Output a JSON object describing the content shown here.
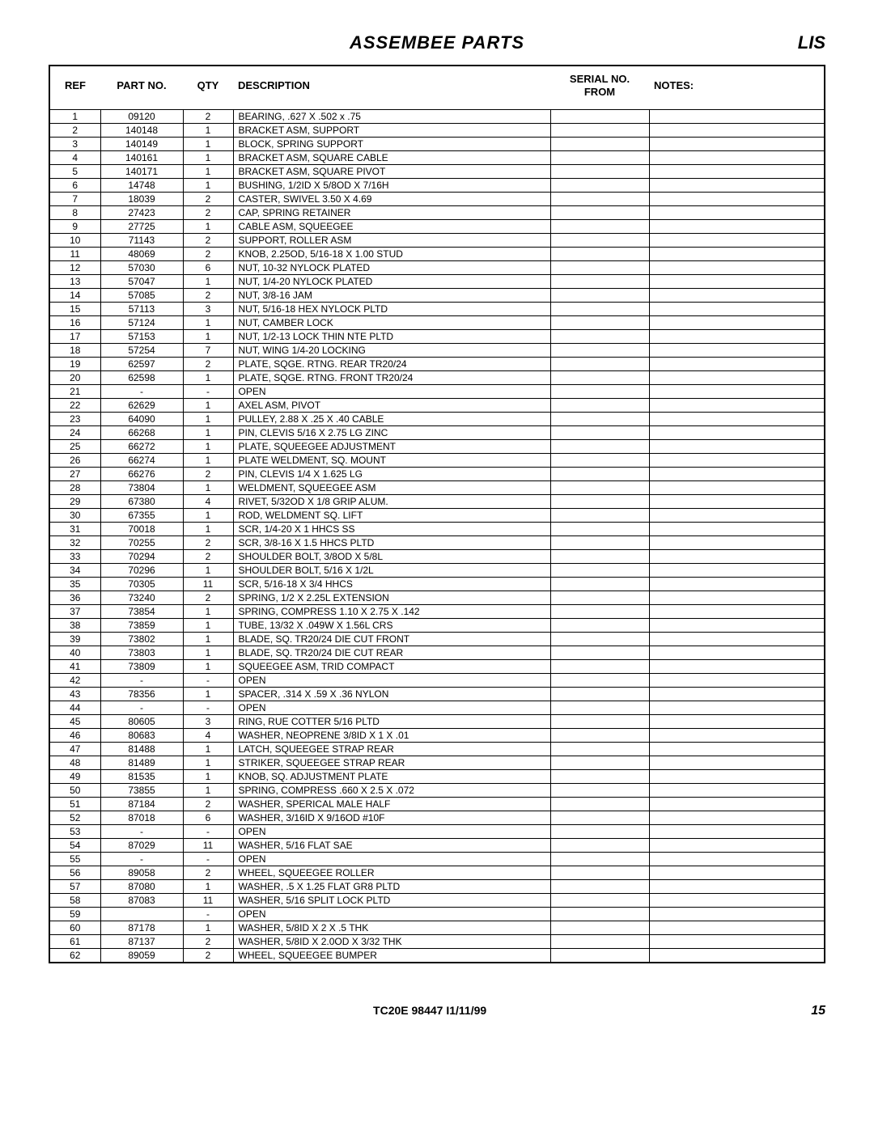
{
  "header": {
    "title": "ASSEMBEE PARTS",
    "right": "LIS"
  },
  "columns": {
    "ref": "REF",
    "part": "PART NO.",
    "qty": "QTY",
    "desc": "DESCRIPTION",
    "serial": "SERIAL NO. FROM",
    "notes": "NOTES:"
  },
  "footer": {
    "center": "TC20E 98447  I1/11/99",
    "page": "15"
  },
  "rows": [
    {
      "ref": "1",
      "part": "09120",
      "qty": "2",
      "desc": "BEARING, .627 X .502 x .75"
    },
    {
      "ref": "2",
      "part": "140148",
      "qty": "1",
      "desc": "BRACKET ASM, SUPPORT"
    },
    {
      "ref": "3",
      "part": "140149",
      "qty": "1",
      "desc": "BLOCK, SPRING SUPPORT"
    },
    {
      "ref": "4",
      "part": "140161",
      "qty": "1",
      "desc": "BRACKET ASM, SQUARE CABLE"
    },
    {
      "ref": "5",
      "part": "140171",
      "qty": "1",
      "desc": "BRACKET ASM, SQUARE PIVOT"
    },
    {
      "ref": "6",
      "part": "14748",
      "qty": "1",
      "desc": "BUSHING, 1/2ID X 5/8OD X 7/16H"
    },
    {
      "ref": "7",
      "part": "18039",
      "qty": "2",
      "desc": "CASTER, SWIVEL 3.50 X 4.69"
    },
    {
      "ref": "8",
      "part": "27423",
      "qty": "2",
      "desc": "CAP, SPRING RETAINER"
    },
    {
      "ref": "9",
      "part": "27725",
      "qty": "1",
      "desc": "CABLE ASM, SQUEEGEE"
    },
    {
      "ref": "10",
      "part": "71143",
      "qty": "2",
      "desc": "SUPPORT, ROLLER ASM"
    },
    {
      "ref": "11",
      "part": "48069",
      "qty": "2",
      "desc": "KNOB, 2.25OD, 5/16-18 X 1.00 STUD"
    },
    {
      "ref": "12",
      "part": "57030",
      "qty": "6",
      "desc": "NUT, 10-32 NYLOCK PLATED"
    },
    {
      "ref": "13",
      "part": "57047",
      "qty": "1",
      "desc": "NUT, 1/4-20 NYLOCK PLATED"
    },
    {
      "ref": "14",
      "part": "57085",
      "qty": "2",
      "desc": "NUT, 3/8-16 JAM"
    },
    {
      "ref": "15",
      "part": "57113",
      "qty": "3",
      "desc": "NUT, 5/16-18 HEX NYLOCK PLTD"
    },
    {
      "ref": "16",
      "part": "57124",
      "qty": "1",
      "desc": "NUT, CAMBER LOCK"
    },
    {
      "ref": "17",
      "part": "57153",
      "qty": "1",
      "desc": "NUT, 1/2-13 LOCK THIN NTE PLTD"
    },
    {
      "ref": "18",
      "part": "57254",
      "qty": "7",
      "desc": "NUT, WING 1/4-20 LOCKING"
    },
    {
      "ref": "19",
      "part": "62597",
      "qty": "2",
      "desc": "PLATE, SQGE. RTNG. REAR TR20/24"
    },
    {
      "ref": "20",
      "part": "62598",
      "qty": "1",
      "desc": "PLATE, SQGE. RTNG. FRONT TR20/24"
    },
    {
      "ref": "21",
      "part": "-",
      "qty": "-",
      "desc": "OPEN"
    },
    {
      "ref": "22",
      "part": "62629",
      "qty": "1",
      "desc": "AXEL ASM, PIVOT"
    },
    {
      "ref": "23",
      "part": "64090",
      "qty": "1",
      "desc": "PULLEY, 2.88 X .25 X .40 CABLE"
    },
    {
      "ref": "24",
      "part": "66268",
      "qty": "1",
      "desc": "PIN, CLEVIS 5/16 X 2.75 LG ZINC"
    },
    {
      "ref": "25",
      "part": "66272",
      "qty": "1",
      "desc": "PLATE, SQUEEGEE ADJUSTMENT"
    },
    {
      "ref": "26",
      "part": "66274",
      "qty": "1",
      "desc": "PLATE WELDMENT, SQ. MOUNT"
    },
    {
      "ref": "27",
      "part": "66276",
      "qty": "2",
      "desc": "PIN, CLEVIS 1/4 X 1.625 LG"
    },
    {
      "ref": "28",
      "part": "73804",
      "qty": "1",
      "desc": "WELDMENT, SQUEEGEE ASM"
    },
    {
      "ref": "29",
      "part": "67380",
      "qty": "4",
      "desc": "RIVET, 5/32OD X 1/8 GRIP ALUM."
    },
    {
      "ref": "30",
      "part": "67355",
      "qty": "1",
      "desc": "ROD, WELDMENT SQ. LIFT"
    },
    {
      "ref": "31",
      "part": "70018",
      "qty": "1",
      "desc": "SCR, 1/4-20 X 1 HHCS SS"
    },
    {
      "ref": "32",
      "part": "70255",
      "qty": "2",
      "desc": "SCR, 3/8-16 X 1.5 HHCS PLTD"
    },
    {
      "ref": "33",
      "part": "70294",
      "qty": "2",
      "desc": "SHOULDER BOLT, 3/8OD X 5/8L"
    },
    {
      "ref": "34",
      "part": "70296",
      "qty": "1",
      "desc": "SHOULDER BOLT, 5/16 X 1/2L"
    },
    {
      "ref": "35",
      "part": "70305",
      "qty": "11",
      "desc": "SCR, 5/16-18 X 3/4 HHCS"
    },
    {
      "ref": "36",
      "part": "73240",
      "qty": "2",
      "desc": "SPRING, 1/2 X 2.25L EXTENSION"
    },
    {
      "ref": "37",
      "part": "73854",
      "qty": "1",
      "desc": "SPRING, COMPRESS 1.10 X 2.75 X .142"
    },
    {
      "ref": "38",
      "part": "73859",
      "qty": "1",
      "desc": "TUBE, 13/32 X .049W X 1.56L CRS"
    },
    {
      "ref": "39",
      "part": "73802",
      "qty": "1",
      "desc": "BLADE, SQ. TR20/24 DIE CUT FRONT"
    },
    {
      "ref": "40",
      "part": "73803",
      "qty": "1",
      "desc": "BLADE, SQ. TR20/24 DIE CUT REAR"
    },
    {
      "ref": "41",
      "part": "73809",
      "qty": "1",
      "desc": "SQUEEGEE ASM, TRID COMPACT"
    },
    {
      "ref": "42",
      "part": "-",
      "qty": "-",
      "desc": "OPEN"
    },
    {
      "ref": "43",
      "part": "78356",
      "qty": "1",
      "desc": "SPACER, .314 X .59 X .36 NYLON"
    },
    {
      "ref": "44",
      "part": "-",
      "qty": "-",
      "desc": "OPEN"
    },
    {
      "ref": "45",
      "part": "80605",
      "qty": "3",
      "desc": "RING, RUE COTTER 5/16 PLTD"
    },
    {
      "ref": "46",
      "part": "80683",
      "qty": "4",
      "desc": "WASHER, NEOPRENE 3/8ID X 1 X .01"
    },
    {
      "ref": "47",
      "part": "81488",
      "qty": "1",
      "desc": "LATCH, SQUEEGEE STRAP REAR"
    },
    {
      "ref": "48",
      "part": "81489",
      "qty": "1",
      "desc": "STRIKER, SQUEEGEE STRAP REAR"
    },
    {
      "ref": "49",
      "part": "81535",
      "qty": "1",
      "desc": "KNOB, SQ. ADJUSTMENT PLATE"
    },
    {
      "ref": "50",
      "part": "73855",
      "qty": "1",
      "desc": "SPRING, COMPRESS .660 X 2.5 X .072"
    },
    {
      "ref": "51",
      "part": "87184",
      "qty": "2",
      "desc": "WASHER, SPERICAL MALE HALF"
    },
    {
      "ref": "52",
      "part": "87018",
      "qty": "6",
      "desc": "WASHER, 3/16ID X 9/16OD #10F"
    },
    {
      "ref": "53",
      "part": "-",
      "qty": "-",
      "desc": "OPEN"
    },
    {
      "ref": "54",
      "part": "87029",
      "qty": "11",
      "desc": "WASHER, 5/16 FLAT SAE"
    },
    {
      "ref": "55",
      "part": "-",
      "qty": "-",
      "desc": "OPEN"
    },
    {
      "ref": "56",
      "part": "89058",
      "qty": "2",
      "desc": "WHEEL, SQUEEGEE ROLLER"
    },
    {
      "ref": "57",
      "part": "87080",
      "qty": "1",
      "desc": "WASHER, .5 X 1.25 FLAT GR8 PLTD"
    },
    {
      "ref": "58",
      "part": "87083",
      "qty": "11",
      "desc": "WASHER, 5/16 SPLIT LOCK PLTD"
    },
    {
      "ref": "59",
      "part": "",
      "qty": "-",
      "desc": "OPEN"
    },
    {
      "ref": "60",
      "part": "87178",
      "qty": "1",
      "desc": "WASHER, 5/8ID X 2 X .5 THK"
    },
    {
      "ref": "61",
      "part": "87137",
      "qty": "2",
      "desc": "WASHER, 5/8ID X 2.0OD X 3/32 THK"
    },
    {
      "ref": "62",
      "part": "89059",
      "qty": "2",
      "desc": "WHEEL, SQUEEGEE BUMPER"
    }
  ]
}
